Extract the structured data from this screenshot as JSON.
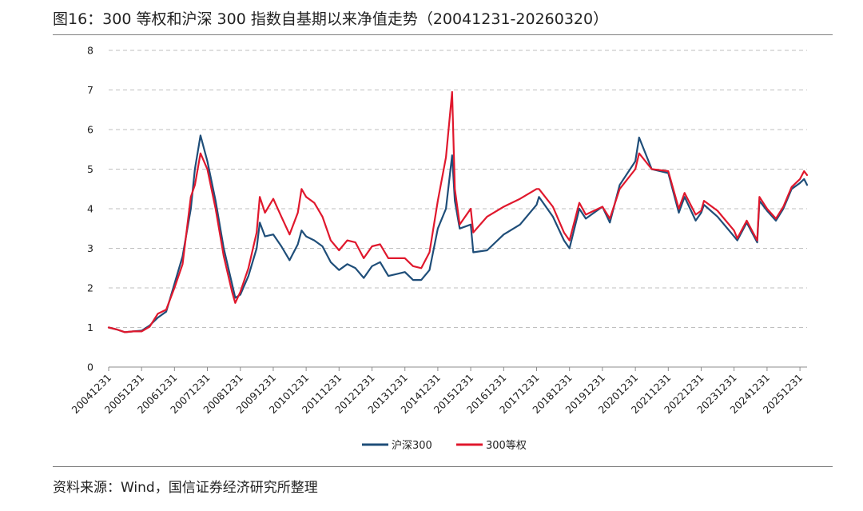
{
  "header": {
    "title": "图16：300 等权和沪深 300 指数自基期以来净值走势（20041231-20260320）"
  },
  "footer": {
    "source": "资料来源：Wind，国信证券经济研究所整理"
  },
  "colors": {
    "csi300": "#1f4e79",
    "equal_weight": "#e0182d",
    "grid": "#bfbfbf",
    "axis": "#8c8c8c"
  },
  "chart_data": {
    "type": "line",
    "title": "",
    "xlabel": "",
    "ylabel": "",
    "ylim": [
      0,
      8
    ],
    "yticks": [
      0,
      1,
      2,
      3,
      4,
      5,
      6,
      7,
      8
    ],
    "xlim": [
      "20041231",
      "20260320"
    ],
    "x_tick_labels": [
      "20041231",
      "20051231",
      "20061231",
      "20071231",
      "20081231",
      "20091231",
      "20101231",
      "20111231",
      "20121231",
      "20131231",
      "20141231",
      "20151231",
      "20161231",
      "20171231",
      "20181231",
      "20191231",
      "20201231",
      "20211231",
      "20221231",
      "20231231",
      "20241231",
      "20251231"
    ],
    "grid": "horizontal dashed",
    "legend_position": "bottom-center",
    "x": [
      "2004-12-31",
      "2005-03-31",
      "2005-06-30",
      "2005-09-30",
      "2005-12-31",
      "2006-03-31",
      "2006-06-30",
      "2006-09-30",
      "2006-12-31",
      "2007-03-31",
      "2007-06-30",
      "2007-08-15",
      "2007-10-16",
      "2007-12-31",
      "2008-03-31",
      "2008-06-30",
      "2008-09-30",
      "2008-11-04",
      "2008-12-31",
      "2009-03-31",
      "2009-06-30",
      "2009-08-04",
      "2009-09-30",
      "2009-12-31",
      "2010-03-31",
      "2010-06-30",
      "2010-09-30",
      "2010-11-10",
      "2010-12-31",
      "2011-03-31",
      "2011-06-30",
      "2011-09-30",
      "2011-12-31",
      "2012-03-31",
      "2012-06-30",
      "2012-09-30",
      "2012-12-31",
      "2013-03-31",
      "2013-06-30",
      "2013-09-30",
      "2013-12-31",
      "2014-03-31",
      "2014-06-30",
      "2014-09-30",
      "2014-12-31",
      "2015-03-31",
      "2015-06-08",
      "2015-07-08",
      "2015-08-31",
      "2015-12-31",
      "2016-01-29",
      "2016-06-30",
      "2016-12-31",
      "2017-06-30",
      "2017-12-31",
      "2018-01-26",
      "2018-06-30",
      "2018-10-31",
      "2018-12-31",
      "2019-04-19",
      "2019-06-30",
      "2019-12-31",
      "2020-03-23",
      "2020-07-10",
      "2020-12-31",
      "2021-02-10",
      "2021-06-30",
      "2021-12-31",
      "2022-04-27",
      "2022-06-30",
      "2022-10-31",
      "2022-12-31",
      "2023-01-31",
      "2023-06-30",
      "2023-12-31",
      "2024-02-05",
      "2024-05-20",
      "2024-09-13",
      "2024-10-08",
      "2024-12-31",
      "2025-04-08",
      "2025-06-30",
      "2025-09-30",
      "2025-12-31",
      "2026-02-15",
      "2026-03-20"
    ],
    "series": [
      {
        "name": "沪深300",
        "color": "#1f4e79",
        "values": [
          1.0,
          0.95,
          0.88,
          0.9,
          0.92,
          1.05,
          1.25,
          1.4,
          2.1,
          2.8,
          4.0,
          5.0,
          5.85,
          5.2,
          4.2,
          3.0,
          2.1,
          1.75,
          1.83,
          2.3,
          3.0,
          3.65,
          3.3,
          3.35,
          3.05,
          2.7,
          3.1,
          3.45,
          3.3,
          3.2,
          3.05,
          2.65,
          2.45,
          2.6,
          2.5,
          2.25,
          2.55,
          2.65,
          2.3,
          2.35,
          2.4,
          2.2,
          2.2,
          2.45,
          3.5,
          4.0,
          5.35,
          4.2,
          3.5,
          3.6,
          2.9,
          2.95,
          3.35,
          3.6,
          4.1,
          4.3,
          3.8,
          3.2,
          3.0,
          4.0,
          3.75,
          4.05,
          3.65,
          4.6,
          5.2,
          5.8,
          5.0,
          4.9,
          3.9,
          4.3,
          3.7,
          3.9,
          4.1,
          3.8,
          3.3,
          3.2,
          3.65,
          3.15,
          4.2,
          3.95,
          3.7,
          4.0,
          4.5,
          4.65,
          4.75,
          4.6
        ]
      },
      {
        "name": "300等权",
        "color": "#e0182d",
        "values": [
          1.0,
          0.95,
          0.88,
          0.9,
          0.9,
          1.02,
          1.35,
          1.45,
          2.0,
          2.6,
          4.3,
          4.6,
          5.4,
          5.0,
          4.0,
          2.8,
          1.9,
          1.62,
          1.9,
          2.5,
          3.4,
          4.3,
          3.9,
          4.25,
          3.8,
          3.35,
          3.9,
          4.5,
          4.3,
          4.15,
          3.8,
          3.2,
          2.95,
          3.2,
          3.15,
          2.75,
          3.05,
          3.1,
          2.75,
          2.75,
          2.75,
          2.55,
          2.5,
          2.9,
          4.2,
          5.3,
          6.95,
          4.5,
          3.6,
          4.0,
          3.4,
          3.8,
          4.05,
          4.25,
          4.5,
          4.5,
          4.05,
          3.4,
          3.2,
          4.15,
          3.85,
          4.05,
          3.75,
          4.5,
          5.0,
          5.4,
          5.0,
          4.95,
          4.0,
          4.4,
          3.85,
          3.95,
          4.2,
          3.95,
          3.45,
          3.25,
          3.7,
          3.2,
          4.3,
          4.0,
          3.75,
          4.05,
          4.55,
          4.75,
          4.95,
          4.85
        ]
      }
    ]
  }
}
